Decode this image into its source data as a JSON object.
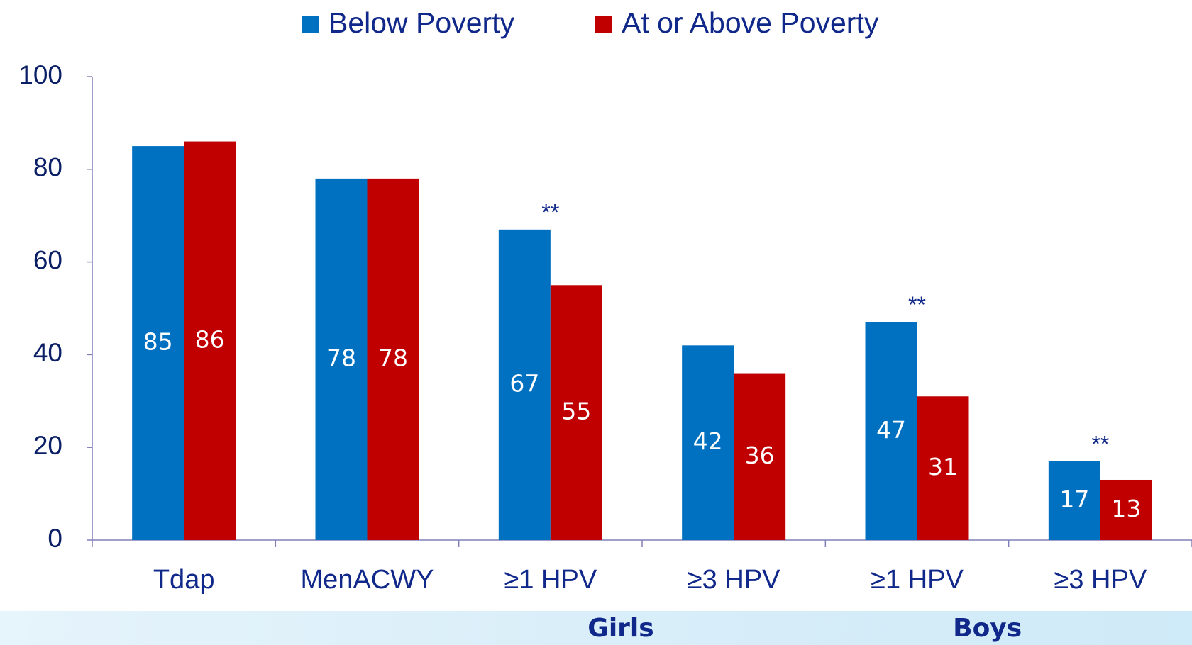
{
  "chart_data": {
    "type": "bar",
    "categories": [
      "Tdap",
      "MenACWY",
      "≥1 HPV",
      "≥3 HPV",
      "≥1 HPV",
      "≥3 HPV"
    ],
    "series": [
      {
        "name": "Below Poverty",
        "color": "#0070c0",
        "values": [
          85,
          78,
          67,
          42,
          47,
          17
        ]
      },
      {
        "name": "At or Above Poverty",
        "color": "#c00000",
        "values": [
          86,
          78,
          55,
          36,
          31,
          13
        ]
      }
    ],
    "annotations": [
      null,
      null,
      "**",
      null,
      "**",
      "**"
    ],
    "groups": [
      "Girls",
      "Boys"
    ],
    "ylim": [
      0,
      100
    ],
    "yticks": [
      0,
      20,
      40,
      60,
      80,
      100
    ],
    "grid": false,
    "legend": "top"
  }
}
